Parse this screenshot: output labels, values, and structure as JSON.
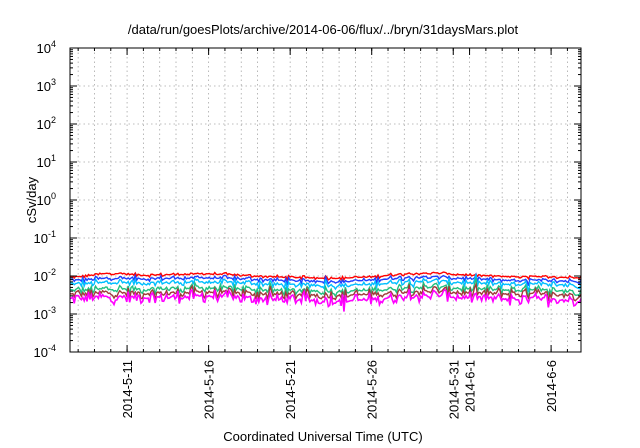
{
  "chart_data": {
    "type": "line",
    "title": "/data/run/goesPlots/archive/2014-06-06/flux/../bryn/31daysMars.plot",
    "xlabel": "Coordinated Universal Time (UTC)",
    "ylabel": "cSv/day",
    "yscale": "log",
    "ylim": [
      0.0001,
      10000
    ],
    "xlim": [
      "2014-05-07T12:00",
      "2014-06-07T20:00"
    ],
    "grid": true,
    "x_ticks": [
      "2014-5-11",
      "2014-5-16",
      "2014-5-21",
      "2014-5-26",
      "2014-5-31",
      "2014-6-1",
      "2014-6-6"
    ],
    "x_tick_dates": [
      "2014-05-11",
      "2014-05-16",
      "2014-05-21",
      "2014-05-26",
      "2014-05-31",
      "2014-06-01",
      "2014-06-06"
    ],
    "y_ticks": [
      {
        "base": "10",
        "exp": "-4"
      },
      {
        "base": "10",
        "exp": "-3"
      },
      {
        "base": "10",
        "exp": "-2"
      },
      {
        "base": "10",
        "exp": "-1"
      },
      {
        "base": "10",
        "exp": "0"
      },
      {
        "base": "10",
        "exp": "1"
      },
      {
        "base": "10",
        "exp": "2"
      },
      {
        "base": "10",
        "exp": "3"
      },
      {
        "base": "10",
        "exp": "4"
      }
    ],
    "x": [
      "2014-05-08",
      "2014-05-10",
      "2014-05-12",
      "2014-05-14",
      "2014-05-16",
      "2014-05-18",
      "2014-05-20",
      "2014-05-22",
      "2014-05-24",
      "2014-05-26",
      "2014-05-28",
      "2014-05-30",
      "2014-06-01",
      "2014-06-03",
      "2014-06-05",
      "2014-06-07"
    ],
    "series": [
      {
        "color": "#ff0000",
        "values": [
          0.0095,
          0.012,
          0.0105,
          0.011,
          0.0115,
          0.0105,
          0.0095,
          0.009,
          0.0088,
          0.0095,
          0.0115,
          0.012,
          0.0105,
          0.0098,
          0.0095,
          0.0092
        ]
      },
      {
        "color": "#1f3fff",
        "values": [
          0.0078,
          0.0088,
          0.0085,
          0.0088,
          0.009,
          0.0085,
          0.0078,
          0.0074,
          0.0072,
          0.0078,
          0.0092,
          0.0095,
          0.0085,
          0.0078,
          0.0076,
          0.0074
        ]
      },
      {
        "color": "#00bfff",
        "values": [
          0.0062,
          0.0068,
          0.0066,
          0.0068,
          0.007,
          0.0066,
          0.006,
          0.0058,
          0.0057,
          0.006,
          0.0072,
          0.0074,
          0.0066,
          0.0061,
          0.006,
          0.0059
        ]
      },
      {
        "color": "#20c080",
        "values": [
          0.0042,
          0.0046,
          0.0045,
          0.0047,
          0.0049,
          0.0046,
          0.0042,
          0.0041,
          0.004,
          0.0042,
          0.005,
          0.0052,
          0.0046,
          0.0043,
          0.0042,
          0.0041
        ]
      },
      {
        "color": "#a03a3a",
        "values": [
          0.0033,
          0.0036,
          0.0035,
          0.0036,
          0.0038,
          0.0036,
          0.0033,
          0.0032,
          0.0031,
          0.0033,
          0.0039,
          0.004,
          0.0036,
          0.0034,
          0.0033,
          0.0032
        ]
      },
      {
        "color": "#ff00ff",
        "values": [
          0.0025,
          0.0028,
          0.0027,
          0.0028,
          0.003,
          0.0027,
          0.0024,
          0.0023,
          0.0022,
          0.0024,
          0.003,
          0.0031,
          0.0027,
          0.0025,
          0.0024,
          0.0023
        ]
      }
    ]
  }
}
